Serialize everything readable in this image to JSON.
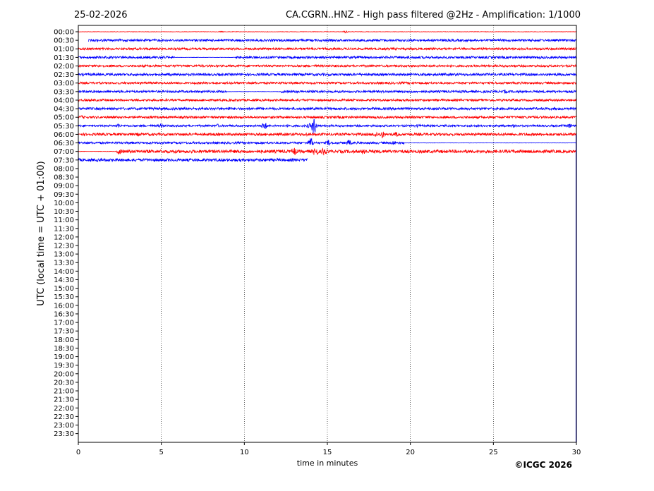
{
  "chart_data": {
    "type": "line",
    "title_left": "25-02-2026",
    "title": "CA.CGRN..HNZ - High pass filtered @2Hz - Amplification: 1/1000",
    "xlabel": "time in minutes",
    "ylabel": "UTC (local time = UTC + 01:00)",
    "xlim": [
      0,
      30
    ],
    "xticks": [
      0,
      5,
      10,
      15,
      20,
      25,
      30
    ],
    "yticks": [
      "00:00",
      "00:30",
      "01:00",
      "01:30",
      "02:00",
      "02:30",
      "03:00",
      "03:30",
      "04:00",
      "04:30",
      "05:00",
      "05:30",
      "06:00",
      "06:30",
      "07:00",
      "07:30",
      "08:00",
      "08:30",
      "09:00",
      "09:30",
      "10:00",
      "10:30",
      "11:00",
      "11:30",
      "12:00",
      "12:30",
      "13:00",
      "13:30",
      "14:00",
      "14:30",
      "15:00",
      "15:30",
      "16:00",
      "16:30",
      "17:00",
      "17:30",
      "18:00",
      "18:30",
      "19:00",
      "19:30",
      "20:00",
      "20:30",
      "21:00",
      "21:30",
      "22:00",
      "22:30",
      "23:00",
      "23:30"
    ],
    "grid_x": true,
    "trace_colors": [
      "#ff0000",
      "#0000ff"
    ],
    "traces": [
      {
        "row": "00:00",
        "start": 0,
        "end": 30,
        "amp": 0.3,
        "events": [
          {
            "t": 16.1,
            "a": 2
          },
          {
            "t": 8.6,
            "a": 1
          }
        ]
      },
      {
        "row": "00:30",
        "start": 0.6,
        "end": 30,
        "amp": 1.6,
        "events": []
      },
      {
        "row": "01:00",
        "start": 0,
        "end": 30,
        "amp": 1.5,
        "events": []
      },
      {
        "row": "01:30",
        "start": 0,
        "end": 30,
        "amp": 1.6,
        "quiet": [
          5.8,
          9.5
        ],
        "events": []
      },
      {
        "row": "02:00",
        "start": 0,
        "end": 30,
        "amp": 1.5,
        "events": []
      },
      {
        "row": "02:30",
        "start": 0,
        "end": 30,
        "amp": 1.7,
        "events": []
      },
      {
        "row": "03:00",
        "start": 0,
        "end": 30,
        "amp": 1.5,
        "events": []
      },
      {
        "row": "03:30",
        "start": 0,
        "end": 30,
        "amp": 1.6,
        "quiet": [
          8.9,
          12.2
        ],
        "events": [
          {
            "t": 25.7,
            "a": 3
          }
        ]
      },
      {
        "row": "04:00",
        "start": 0,
        "end": 30,
        "amp": 1.5,
        "events": []
      },
      {
        "row": "04:30",
        "start": 0,
        "end": 30,
        "amp": 1.7,
        "events": [
          {
            "t": 9.1,
            "a": 3
          },
          {
            "t": 27.4,
            "a": 2
          }
        ]
      },
      {
        "row": "05:00",
        "start": 0,
        "end": 30,
        "amp": 1.6,
        "events": [
          {
            "t": 0.2,
            "a": 3
          },
          {
            "t": 13.8,
            "a": 2
          }
        ]
      },
      {
        "row": "05:30",
        "start": 0,
        "end": 30,
        "amp": 1.4,
        "events": [
          {
            "t": 2.4,
            "a": 4
          },
          {
            "t": 5.0,
            "a": 4
          },
          {
            "t": 8.4,
            "a": 3
          },
          {
            "t": 11.2,
            "a": 7
          },
          {
            "t": 12.7,
            "a": 3
          },
          {
            "t": 13.9,
            "a": 4
          },
          {
            "t": 14.2,
            "a": 14
          },
          {
            "t": 20.5,
            "a": 3
          },
          {
            "t": 26.2,
            "a": 3
          },
          {
            "t": 29.6,
            "a": 4
          }
        ]
      },
      {
        "row": "06:00",
        "start": 0,
        "end": 30,
        "amp": 1.8,
        "events": [
          {
            "t": 3.6,
            "a": 3
          },
          {
            "t": 13.7,
            "a": 3
          },
          {
            "t": 17.9,
            "a": 5
          },
          {
            "t": 18.3,
            "a": 6
          },
          {
            "t": 19.2,
            "a": 4
          },
          {
            "t": 27.0,
            "a": 3
          }
        ]
      },
      {
        "row": "06:30",
        "start": 0,
        "end": 30,
        "amp": 1.5,
        "quiet": [
          19.6,
          30
        ],
        "events": [
          {
            "t": 14.0,
            "a": 8
          },
          {
            "t": 15.1,
            "a": 5
          },
          {
            "t": 16.3,
            "a": 5
          },
          {
            "t": 19.0,
            "a": 4
          }
        ]
      },
      {
        "row": "07:00",
        "start": 0,
        "end": 30,
        "amp": 2.2,
        "quiet": [
          0,
          2.3
        ],
        "events": [
          {
            "t": 2.5,
            "a": 5
          },
          {
            "t": 13.0,
            "a": 7
          },
          {
            "t": 14.3,
            "a": 9
          },
          {
            "t": 14.8,
            "a": 7
          },
          {
            "t": 17.2,
            "a": 6
          },
          {
            "t": 27.9,
            "a": 4
          }
        ]
      },
      {
        "row": "07:30",
        "start": 0,
        "end": 13.8,
        "amp": 2.0,
        "events": [
          {
            "t": 13.9,
            "a": 5
          }
        ]
      }
    ]
  },
  "footer": {
    "copyright": "©ICGC 2026"
  }
}
